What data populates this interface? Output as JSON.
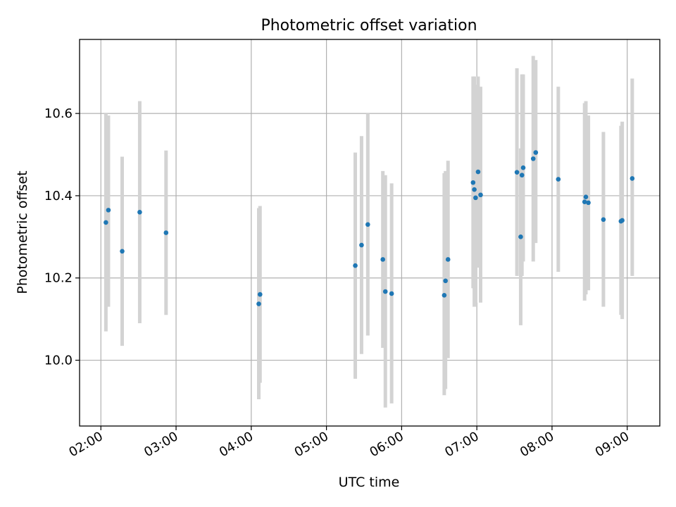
{
  "chart_data": {
    "type": "scatter",
    "title": "Photometric offset variation",
    "xlabel": "UTC time",
    "ylabel": "Photometric offset",
    "x_tick_labels": [
      "02:00",
      "03:00",
      "04:00",
      "05:00",
      "06:00",
      "07:00",
      "08:00",
      "09:00"
    ],
    "x_tick_times": [
      "02:00",
      "03:00",
      "04:00",
      "05:00",
      "06:00",
      "07:00",
      "08:00",
      "09:00"
    ],
    "y_tick_labels": [
      "10.0",
      "10.2",
      "10.4",
      "10.6"
    ],
    "y_tick_values": [
      10.0,
      10.2,
      10.4,
      10.6
    ],
    "xlim": [
      "01:43",
      "09:26"
    ],
    "ylim": [
      9.84,
      10.78
    ],
    "grid": true,
    "colors": {
      "points": "#1f77b4",
      "error_bars": "#d3d3d3",
      "grid": "#b0b0b0"
    },
    "points": [
      {
        "time": "02:04",
        "value": 10.335,
        "low": 10.07,
        "high": 10.6
      },
      {
        "time": "02:06",
        "value": 10.365,
        "low": 10.13,
        "high": 10.595
      },
      {
        "time": "02:17",
        "value": 10.265,
        "low": 10.035,
        "high": 10.495
      },
      {
        "time": "02:31",
        "value": 10.36,
        "low": 10.09,
        "high": 10.63
      },
      {
        "time": "02:52",
        "value": 10.31,
        "low": 10.11,
        "high": 10.51
      },
      {
        "time": "04:06",
        "value": 10.137,
        "low": 9.905,
        "high": 10.37
      },
      {
        "time": "04:07",
        "value": 10.16,
        "low": 9.945,
        "high": 10.375
      },
      {
        "time": "05:23",
        "value": 10.23,
        "low": 9.955,
        "high": 10.505
      },
      {
        "time": "05:28",
        "value": 10.28,
        "low": 10.015,
        "high": 10.545
      },
      {
        "time": "05:33",
        "value": 10.33,
        "low": 10.06,
        "high": 10.6
      },
      {
        "time": "05:45",
        "value": 10.245,
        "low": 10.03,
        "high": 10.46
      },
      {
        "time": "05:47",
        "value": 10.167,
        "low": 9.885,
        "high": 10.45
      },
      {
        "time": "05:52",
        "value": 10.162,
        "low": 9.895,
        "high": 10.43
      },
      {
        "time": "06:34",
        "value": 10.158,
        "low": 9.915,
        "high": 10.455
      },
      {
        "time": "06:35",
        "value": 10.193,
        "low": 9.93,
        "high": 10.46
      },
      {
        "time": "06:37",
        "value": 10.245,
        "low": 10.005,
        "high": 10.485
      },
      {
        "time": "06:57",
        "value": 10.432,
        "low": 10.175,
        "high": 10.69
      },
      {
        "time": "06:58",
        "value": 10.415,
        "low": 10.13,
        "high": 10.69
      },
      {
        "time": "06:59",
        "value": 10.395,
        "low": 10.14,
        "high": 10.67
      },
      {
        "time": "07:01",
        "value": 10.458,
        "low": 10.225,
        "high": 10.69
      },
      {
        "time": "07:03",
        "value": 10.402,
        "low": 10.14,
        "high": 10.665
      },
      {
        "time": "07:32",
        "value": 10.457,
        "low": 10.205,
        "high": 10.71
      },
      {
        "time": "07:35",
        "value": 10.3,
        "low": 10.085,
        "high": 10.515
      },
      {
        "time": "07:36",
        "value": 10.45,
        "low": 10.205,
        "high": 10.695
      },
      {
        "time": "07:37",
        "value": 10.468,
        "low": 10.24,
        "high": 10.695
      },
      {
        "time": "07:45",
        "value": 10.49,
        "low": 10.24,
        "high": 10.74
      },
      {
        "time": "07:47",
        "value": 10.505,
        "low": 10.285,
        "high": 10.73
      },
      {
        "time": "08:05",
        "value": 10.44,
        "low": 10.215,
        "high": 10.665
      },
      {
        "time": "08:26",
        "value": 10.385,
        "low": 10.145,
        "high": 10.625
      },
      {
        "time": "08:27",
        "value": 10.397,
        "low": 10.16,
        "high": 10.63
      },
      {
        "time": "08:29",
        "value": 10.383,
        "low": 10.17,
        "high": 10.595
      },
      {
        "time": "08:41",
        "value": 10.342,
        "low": 10.13,
        "high": 10.555
      },
      {
        "time": "08:55",
        "value": 10.338,
        "low": 10.11,
        "high": 10.57
      },
      {
        "time": "08:56",
        "value": 10.34,
        "low": 10.1,
        "high": 10.58
      },
      {
        "time": "09:04",
        "value": 10.442,
        "low": 10.205,
        "high": 10.685
      }
    ]
  }
}
